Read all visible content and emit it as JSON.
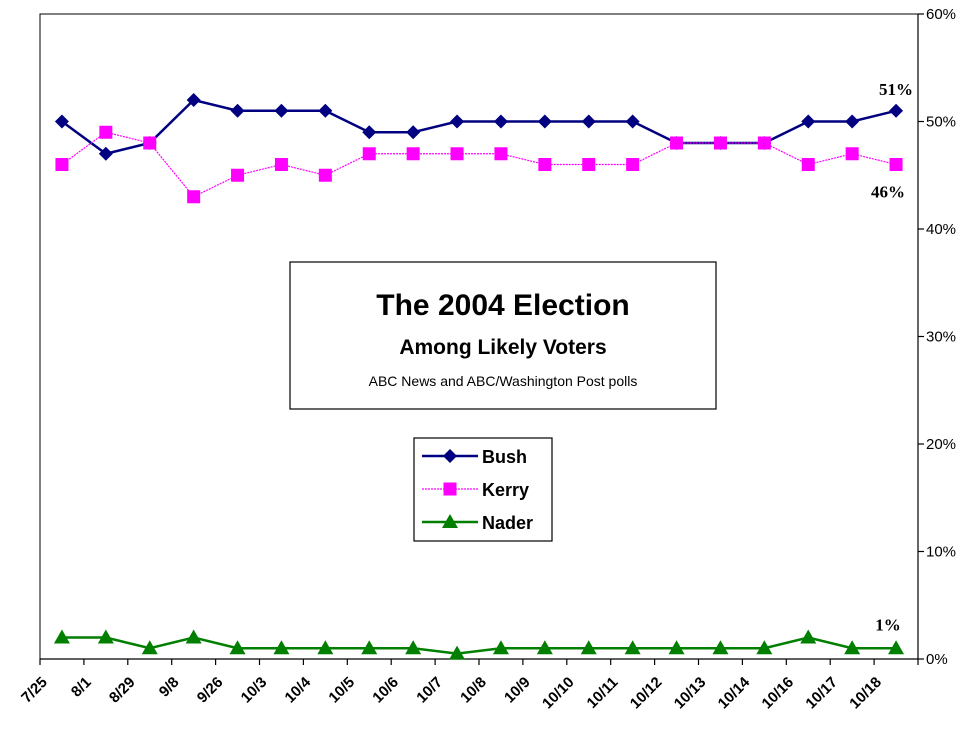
{
  "chart_data": {
    "type": "line",
    "title": "The 2004 Election",
    "subtitle": "Among Likely Voters",
    "source": "ABC News and ABC/Washington Post polls",
    "categories": [
      "7/25",
      "8/1",
      "8/29",
      "9/8",
      "9/26",
      "10/3",
      "10/4",
      "10/5",
      "10/6",
      "10/7",
      "10/8",
      "10/9",
      "10/10",
      "10/11",
      "10/12",
      "10/13",
      "10/14",
      "10/16",
      "10/17",
      "10/18"
    ],
    "ylim": [
      0,
      60
    ],
    "y_ticks": [
      0,
      10,
      20,
      30,
      40,
      50,
      60
    ],
    "y_tick_suffix": "%",
    "series": [
      {
        "name": "Bush",
        "color": "#000080",
        "marker": "diamond",
        "values": [
          50,
          47,
          48,
          52,
          51,
          51,
          51,
          49,
          49,
          50,
          50,
          50,
          50,
          50,
          48,
          48,
          48,
          50,
          50,
          51
        ],
        "end_label": "51%"
      },
      {
        "name": "Kerry",
        "color": "#ff00ff",
        "marker": "square",
        "values": [
          46,
          49,
          48,
          43,
          45,
          46,
          45,
          47,
          47,
          47,
          47,
          46,
          46,
          46,
          48,
          48,
          48,
          46,
          47,
          46
        ],
        "end_label": "46%"
      },
      {
        "name": "Nader",
        "color": "#007f00",
        "marker": "triangle",
        "values": [
          2,
          2,
          1,
          2,
          1,
          1,
          1,
          1,
          1,
          0.5,
          1,
          1,
          1,
          1,
          1,
          1,
          1,
          2,
          1,
          1
        ],
        "end_label": "1%"
      }
    ],
    "legend_position": "center",
    "grid": false
  }
}
